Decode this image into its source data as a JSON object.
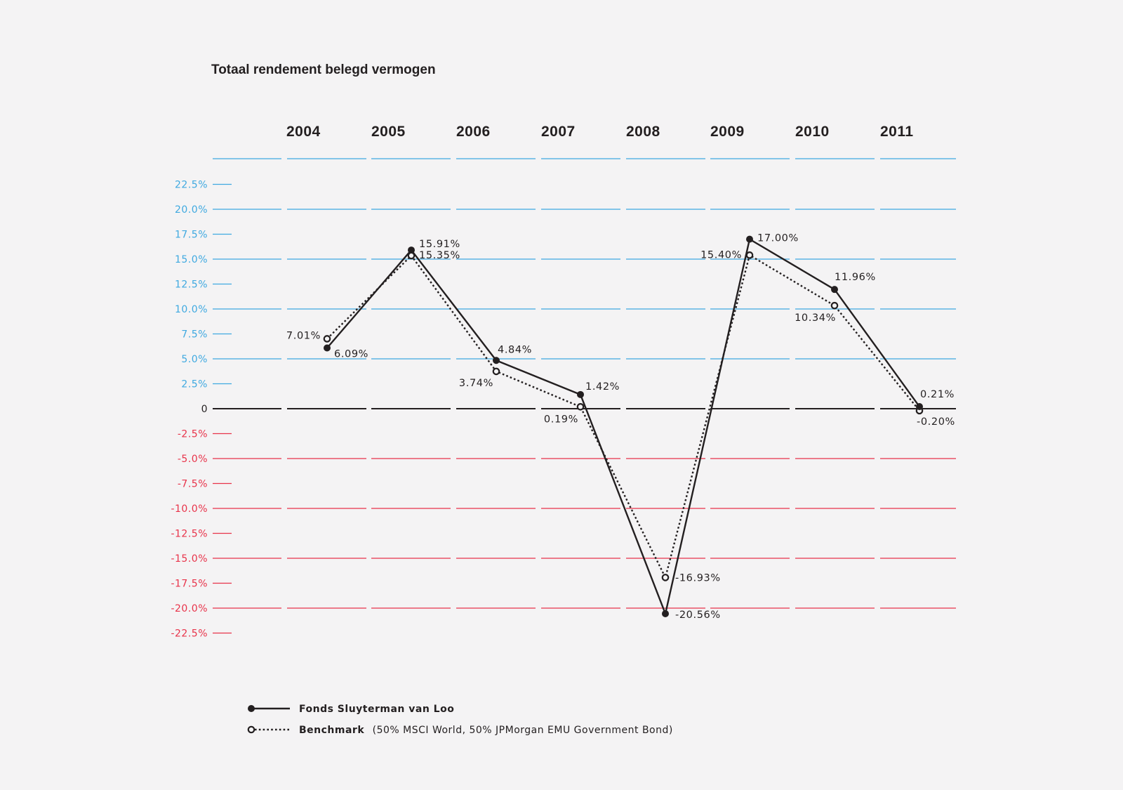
{
  "chart_data": {
    "type": "line",
    "title": "Totaal rendement belegd vermogen",
    "categories": [
      "2004",
      "2005",
      "2006",
      "2007",
      "2008",
      "2009",
      "2010",
      "2011"
    ],
    "ylim": [
      -22.5,
      22.5
    ],
    "yticks": [
      {
        "value": 22.5,
        "label": "22.5%"
      },
      {
        "value": 20.0,
        "label": "20.0%"
      },
      {
        "value": 17.5,
        "label": "17.5%"
      },
      {
        "value": 15.0,
        "label": "15.0%"
      },
      {
        "value": 12.5,
        "label": "12.5%"
      },
      {
        "value": 10.0,
        "label": "10.0%"
      },
      {
        "value": 7.5,
        "label": "7.5%"
      },
      {
        "value": 5.0,
        "label": "5.0%"
      },
      {
        "value": 2.5,
        "label": "2.5%"
      },
      {
        "value": 0,
        "label": "0"
      },
      {
        "value": -2.5,
        "label": "-2.5%"
      },
      {
        "value": -5.0,
        "label": "-5.0%"
      },
      {
        "value": -7.5,
        "label": "-7.5%"
      },
      {
        "value": -10.0,
        "label": "-10.0%"
      },
      {
        "value": -12.5,
        "label": "-12.5%"
      },
      {
        "value": -15.0,
        "label": "-15.0%"
      },
      {
        "value": -17.5,
        "label": "-17.5%"
      },
      {
        "value": -20.0,
        "label": "-20.0%"
      },
      {
        "value": -22.5,
        "label": "-22.5%"
      }
    ],
    "grid": true,
    "legend_position": "bottom-left",
    "colors": {
      "positive": "#3fa9e0",
      "negative": "#e8334a",
      "zero": "#231f20",
      "series": "#231f20"
    },
    "series": [
      {
        "name": "Fonds Sluyterman van Loo",
        "style": "solid",
        "marker": "filled",
        "values": [
          6.09,
          15.91,
          4.84,
          1.42,
          -20.56,
          17.0,
          11.96,
          0.21
        ],
        "labels": [
          "6.09%",
          "15.91%",
          "4.84%",
          "1.42%",
          "-20.56%",
          "17.00%",
          "11.96%",
          "0.21%"
        ]
      },
      {
        "name": "Benchmark",
        "name_detail": "(50% MSCI World, 50% JPMorgan EMU Government Bond)",
        "style": "dotted",
        "marker": "open",
        "values": [
          7.01,
          15.35,
          3.74,
          0.19,
          -16.93,
          15.4,
          10.34,
          -0.2
        ],
        "labels": [
          "7.01%",
          "15.35%",
          "3.74%",
          "0.19%",
          "-16.93%",
          "15.40%",
          "10.34%",
          "-0.20%"
        ]
      }
    ]
  }
}
